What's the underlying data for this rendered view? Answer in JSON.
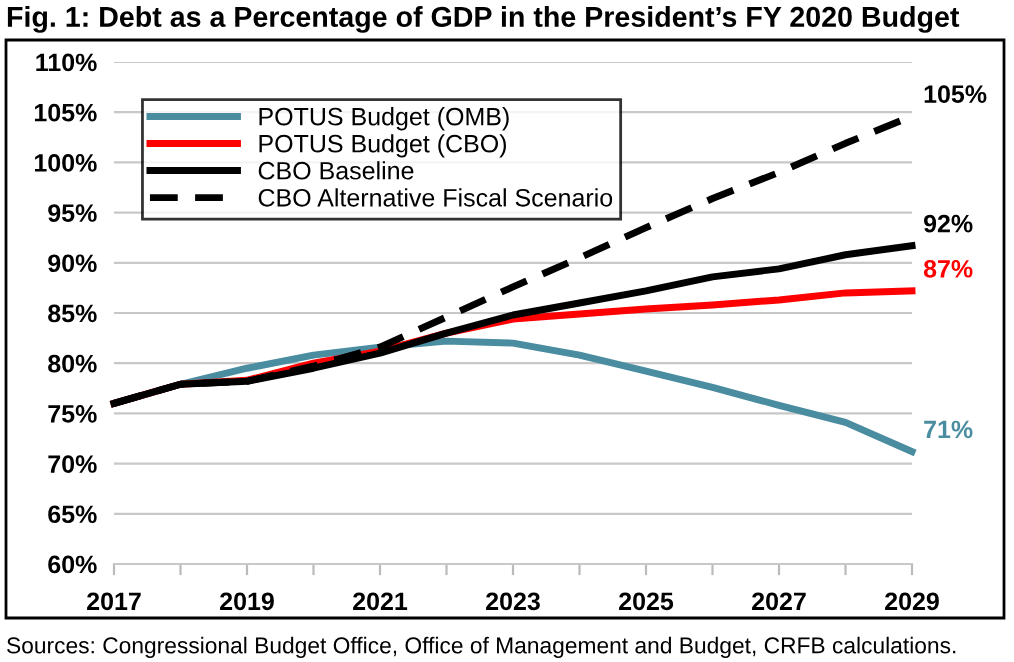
{
  "chart_data": {
    "type": "line",
    "title": "Fig. 1: Debt as a Percentage of GDP in the President’s FY 2020 Budget",
    "x": [
      2017,
      2018,
      2019,
      2020,
      2021,
      2022,
      2023,
      2024,
      2025,
      2026,
      2027,
      2028,
      2029
    ],
    "series": [
      {
        "name": "POTUS Budget (OMB)",
        "color": "#4a8ca0",
        "line_style": "solid",
        "values": [
          76,
          77.9,
          79.5,
          80.8,
          81.6,
          82.2,
          82.0,
          80.8,
          79.2,
          77.6,
          75.8,
          74.1,
          71.2
        ],
        "value_labels": [
          null,
          null,
          null,
          null,
          null,
          null,
          null,
          null,
          null,
          null,
          null,
          null,
          "71%"
        ]
      },
      {
        "name": "POTUS Budget (CBO)",
        "color": "#ff0000",
        "line_style": "solid",
        "values": [
          76,
          77.9,
          78.3,
          80.0,
          81.2,
          83.0,
          84.4,
          84.9,
          85.4,
          85.8,
          86.3,
          87.0,
          87.2
        ],
        "value_labels": [
          null,
          null,
          null,
          null,
          null,
          null,
          null,
          null,
          null,
          null,
          null,
          null,
          "87%"
        ]
      },
      {
        "name": "CBO Baseline",
        "color": "#000000",
        "line_style": "solid",
        "values": [
          76,
          77.9,
          78.2,
          79.5,
          81.0,
          83.0,
          84.8,
          86.0,
          87.2,
          88.6,
          89.4,
          90.8,
          91.7
        ],
        "value_labels": [
          null,
          null,
          null,
          null,
          null,
          null,
          null,
          null,
          null,
          null,
          null,
          null,
          "92%"
        ]
      },
      {
        "name": "CBO Alternative Fiscal Scenario",
        "color": "#000000",
        "line_style": "dashed",
        "values": [
          76,
          77.9,
          78.2,
          79.7,
          81.6,
          84.6,
          87.6,
          90.5,
          93.5,
          96.4,
          99.0,
          101.9,
          104.6
        ],
        "value_labels": [
          null,
          null,
          null,
          null,
          null,
          null,
          null,
          null,
          null,
          null,
          null,
          null,
          "105%"
        ]
      }
    ],
    "xlim": [
      2017,
      2029
    ],
    "xticks": [
      2017,
      {
        "value": 2018,
        "label": null
      },
      2019,
      {
        "value": 2020,
        "label": null
      },
      2021,
      {
        "value": 2022,
        "label": null
      },
      2023,
      {
        "value": 2024,
        "label": null
      },
      2025,
      {
        "value": 2026,
        "label": null
      },
      2027,
      {
        "value": 2028,
        "label": null
      },
      2029
    ],
    "ylim": [
      60,
      110
    ],
    "yticks": [
      {
        "value": 60,
        "label": "60%"
      },
      {
        "value": 65,
        "label": "65%"
      },
      {
        "value": 70,
        "label": "70%"
      },
      {
        "value": 75,
        "label": "75%"
      },
      {
        "value": 80,
        "label": "80%"
      },
      {
        "value": 85,
        "label": "85%"
      },
      {
        "value": 90,
        "label": "90%"
      },
      {
        "value": 95,
        "label": "95%"
      },
      {
        "value": 100,
        "label": "100%"
      },
      {
        "value": 105,
        "label": "105%"
      },
      {
        "value": 110,
        "label": "110%"
      }
    ],
    "grid": "y",
    "legend": "top left",
    "marker": "none",
    "annotations": [
      "Sources: Congressional Budget Office, Office of Management and Budget, CRFB calculations."
    ]
  }
}
